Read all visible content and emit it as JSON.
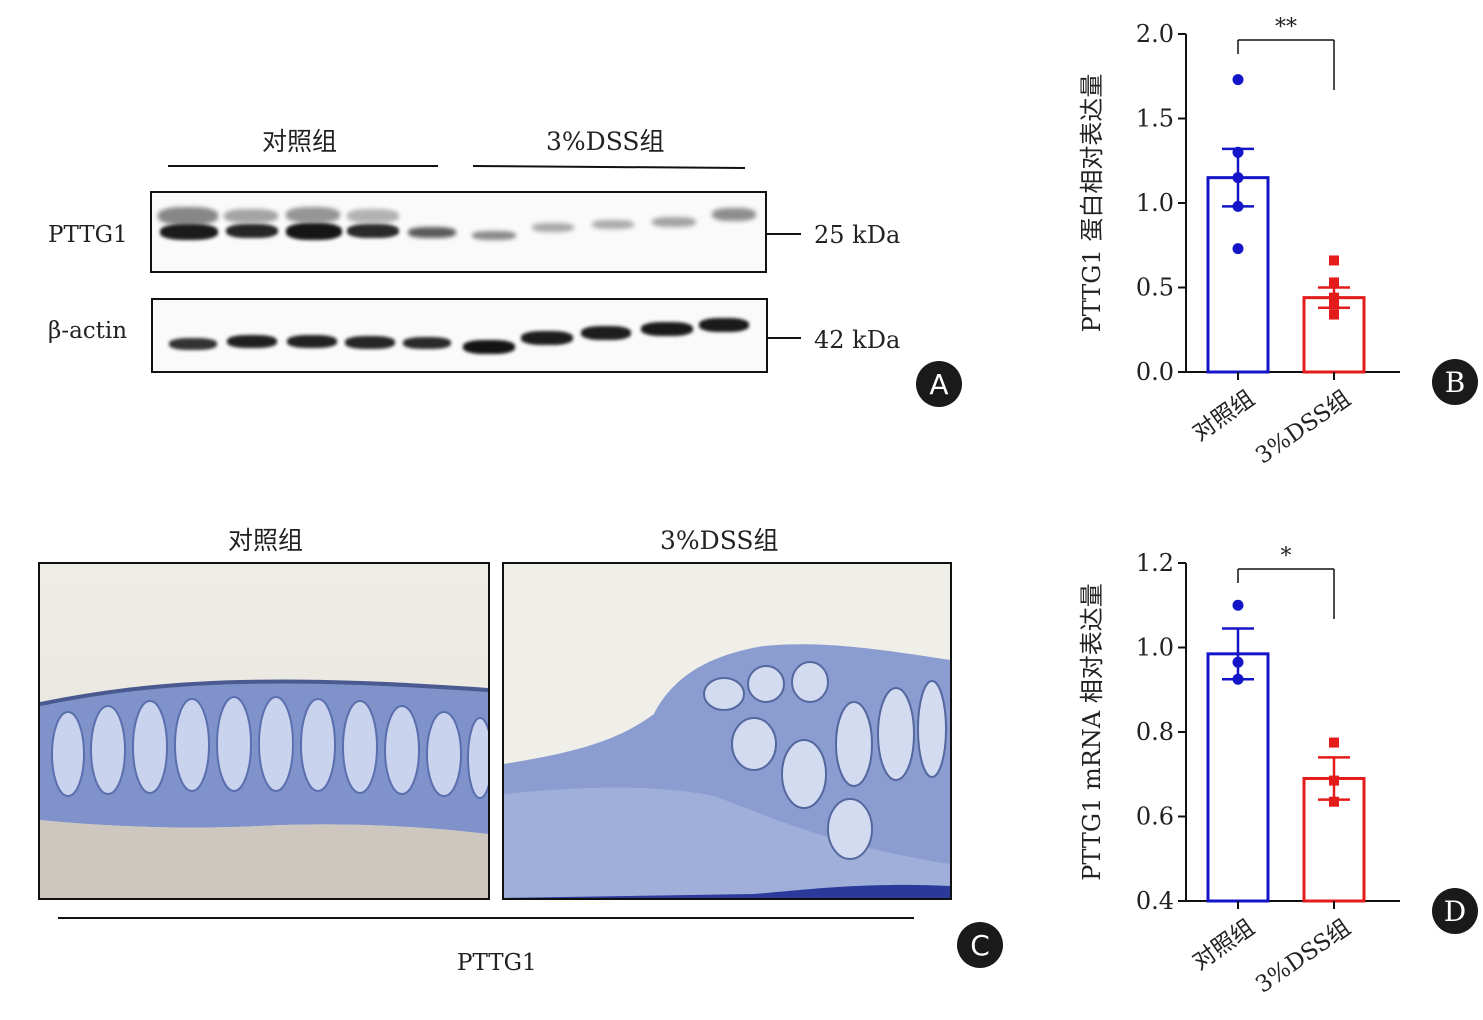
{
  "panelA": {
    "group_control": "对照组",
    "group_dss": "3%DSS组",
    "label_pttg1": "PTTG1",
    "label_actin": "β-actin",
    "kda_pttg1": "25 kDa",
    "kda_actin": "42 kDa",
    "badge": "A"
  },
  "panelC": {
    "group_control": "对照组",
    "group_dss": "3%DSS组",
    "footer": "PTTG1",
    "badge": "C"
  },
  "chart_data": [
    {
      "type": "bar",
      "panel": "B",
      "categories": [
        "对照组",
        "3%DSS组"
      ],
      "values": [
        1.15,
        0.44
      ],
      "errors": [
        0.17,
        0.06
      ],
      "points": [
        [
          1.73,
          1.3,
          1.15,
          0.98,
          0.73
        ],
        [
          0.66,
          0.53,
          0.44,
          0.4,
          0.34
        ]
      ],
      "ylabel": "PTTG1 蛋白相对表达量",
      "ylim": [
        0,
        2.0
      ],
      "yticks": [
        "0.0",
        "0.5",
        "1.0",
        "1.5",
        "2.0"
      ],
      "significance": "**",
      "colors": [
        "#1414c8",
        "#e31b1b"
      ],
      "badge": "B"
    },
    {
      "type": "bar",
      "panel": "D",
      "categories": [
        "对照组",
        "3%DSS组"
      ],
      "values": [
        0.985,
        0.69
      ],
      "errors": [
        0.06,
        0.05
      ],
      "points": [
        [
          1.1,
          0.965,
          0.925
        ],
        [
          0.775,
          0.685,
          0.635
        ]
      ],
      "ylabel": "PTTG1 mRNA 相对表达量",
      "ylim": [
        0.4,
        1.2
      ],
      "yticks": [
        "0.4",
        "0.6",
        "0.8",
        "1.0",
        "1.2"
      ],
      "significance": "*",
      "colors": [
        "#1414c8",
        "#e31b1b"
      ],
      "badge": "D"
    }
  ]
}
